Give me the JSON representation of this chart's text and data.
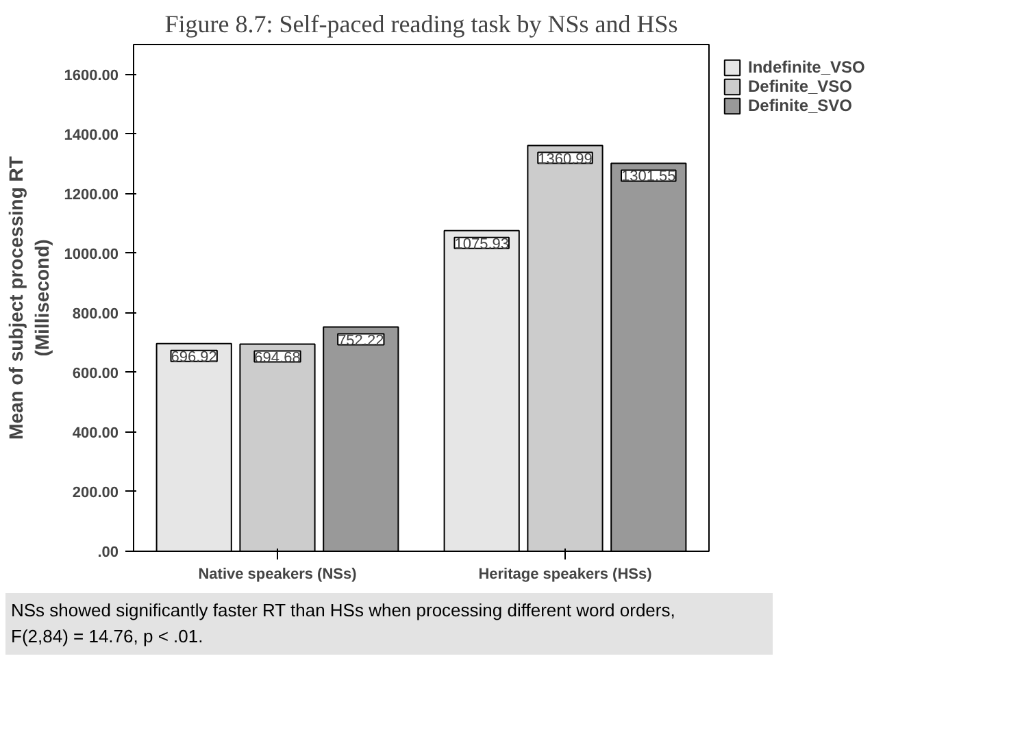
{
  "chart_data": {
    "type": "bar",
    "title": "Figure 8.7: Self-paced reading task by NSs and HSs",
    "ylabel": "Mean of subject processing RT\n(Millisecond)",
    "categories": [
      "Native speakers (NSs)",
      "Heritage speakers (HSs)"
    ],
    "series": [
      {
        "name": "Indefinite_VSO",
        "color": "#e6e6e6",
        "values": [
          696.92,
          1075.93
        ]
      },
      {
        "name": "Definite_VSO",
        "color": "#cccccc",
        "values": [
          694.68,
          1360.99
        ]
      },
      {
        "name": "Definite_SVO",
        "color": "#999999",
        "values": [
          752.22,
          1301.55
        ]
      }
    ],
    "data_labels": true,
    "ylim": [
      0,
      1700
    ],
    "yticks": [
      {
        "value": 0,
        "label": ".00"
      },
      {
        "value": 200,
        "label": "200.00"
      },
      {
        "value": 400,
        "label": "400.00"
      },
      {
        "value": 600,
        "label": "600.00"
      },
      {
        "value": 800,
        "label": "800.00"
      },
      {
        "value": 1000,
        "label": "1000.00"
      },
      {
        "value": 1200,
        "label": "1200.00"
      },
      {
        "value": 1400,
        "label": "1400.00"
      },
      {
        "value": 1600,
        "label": "1600.00"
      }
    ],
    "grid": false,
    "legend": "top right",
    "annotations": [
      "NSs showed significantly faster RT than HSs when processing different word orders, F(2,84) = 14.76, p < .01."
    ]
  }
}
